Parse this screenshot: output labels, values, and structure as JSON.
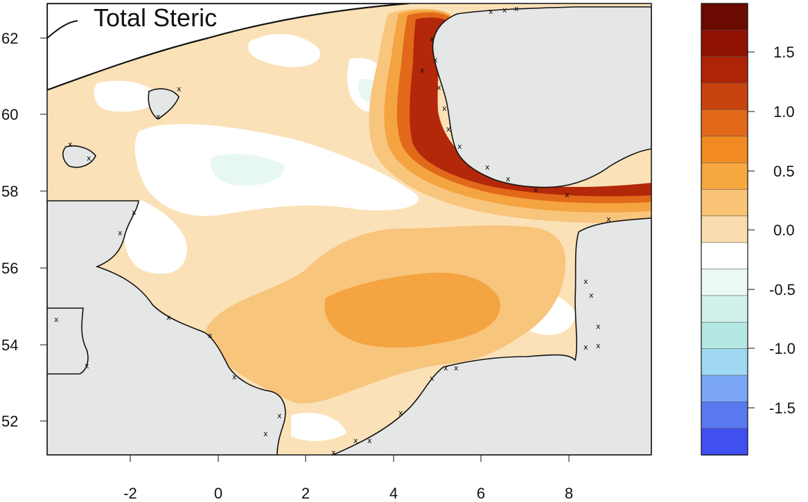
{
  "title": "Total Steric",
  "axes": {
    "x_ticks": [
      "-2",
      "0",
      "2",
      "4",
      "6",
      "8"
    ],
    "y_ticks": [
      "52",
      "54",
      "56",
      "58",
      "60",
      "62"
    ]
  },
  "colorbar": {
    "labels": [
      "1.5",
      "1.0",
      "0.5",
      "0.0",
      "-0.5",
      "-1.0",
      "-1.5"
    ],
    "colors": [
      "#6b0a00",
      "#8f1100",
      "#ad2406",
      "#c8440f",
      "#e2691a",
      "#f28a24",
      "#f7a83e",
      "#f9c475",
      "#fbdcae",
      "#ffffff",
      "#ebf8f6",
      "#d2f1ec",
      "#b5e8e2",
      "#9fd8f0",
      "#7aa6f5",
      "#5a78f0",
      "#3f4ff0"
    ]
  },
  "legend_colors": {
    "land": "#e5e6e6",
    "sea_light": "#fbe1b7",
    "sea_mid": "#f8c57d",
    "sea_high": "#f4a440",
    "coast_peak": "#b3270a",
    "coastline": "#111111"
  }
}
